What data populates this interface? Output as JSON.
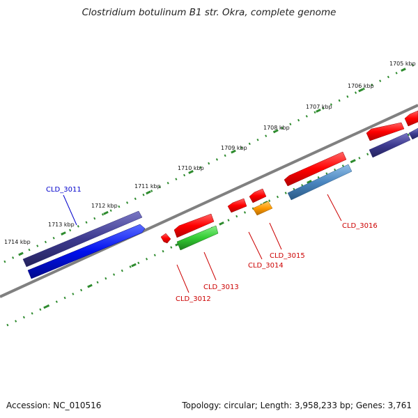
{
  "title": "Clostridium botulinum B1 str. Okra, complete genome",
  "footer": {
    "accession": "Accession: NC_010516",
    "summary": "Topology: circular; Length: 3,958,233 bp; Genes: 3,761"
  },
  "ticks": [
    "1705 kbp",
    "1706 kbp",
    "1707 kbp",
    "1708 kbp",
    "1709 kbp",
    "1710 kbp",
    "1711 kbp",
    "1712 kbp",
    "1713 kbp",
    "1714 kbp"
  ],
  "genes": [
    {
      "label": "CLD_3011",
      "color": "#0000cc"
    },
    {
      "label": "CLD_3012",
      "color": "#cc0000"
    },
    {
      "label": "CLD_3013",
      "color": "#cc0000"
    },
    {
      "label": "CLD_3014",
      "color": "#cc0000"
    },
    {
      "label": "CLD_3015",
      "color": "#cc0000"
    },
    {
      "label": "CLD_3016",
      "color": "#cc0000"
    }
  ],
  "colors": {
    "backbone": "#808080",
    "scale_ticks": "#2e8b2e",
    "red_feature": "#ff1a1a",
    "blue_feature": "#0a14e6",
    "navy_feature": "#3d3a8f",
    "green_feature": "#33cc33",
    "orange_feature": "#ff9900",
    "steel_feature": "#4a86c0"
  }
}
